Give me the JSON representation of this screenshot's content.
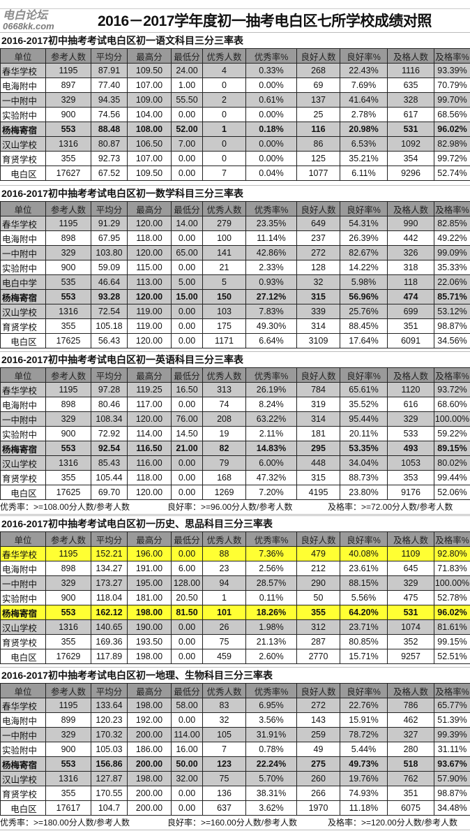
{
  "title": "2016－2017学年度初一抽考电白区七所学校成绩对照",
  "columns": [
    "单位",
    "参考人数",
    "平均分",
    "最高分",
    "最低分",
    "优秀人数",
    "优秀率%",
    "良好人数",
    "良好率%",
    "及格人数",
    "及格率%"
  ],
  "sections": [
    {
      "title": "2016-2017初中抽考考试电白区初一语文科目三分三率表",
      "rows": [
        {
          "style": "gray",
          "cells": [
            "春华学校",
            "1195",
            "87.91",
            "109.50",
            "24.00",
            "4",
            "0.33%",
            "268",
            "22.43%",
            "1116",
            "93.39%"
          ]
        },
        {
          "style": "white",
          "cells": [
            "电海附中",
            "897",
            "77.40",
            "107.00",
            "1.00",
            "0",
            "0.00%",
            "69",
            "7.69%",
            "635",
            "70.79%"
          ]
        },
        {
          "style": "gray",
          "cells": [
            "一中附中",
            "329",
            "94.35",
            "109.00",
            "55.50",
            "2",
            "0.61%",
            "137",
            "41.64%",
            "328",
            "99.70%"
          ]
        },
        {
          "style": "white",
          "cells": [
            "实验附中",
            "900",
            "74.56",
            "104.00",
            "0.00",
            "0",
            "0.00%",
            "25",
            "2.78%",
            "617",
            "68.56%"
          ]
        },
        {
          "style": "gray",
          "bold": true,
          "cells": [
            "杨梅寄宿",
            "553",
            "88.48",
            "108.00",
            "52.00",
            "1",
            "0.18%",
            "116",
            "20.98%",
            "531",
            "96.02%"
          ]
        },
        {
          "style": "gray",
          "cells": [
            "汉山学校",
            "1316",
            "80.87",
            "106.50",
            "7.00",
            "0",
            "0.00%",
            "86",
            "6.53%",
            "1092",
            "82.98%"
          ]
        },
        {
          "style": "white",
          "cells": [
            "育贤学校",
            "355",
            "92.73",
            "107.00",
            "0.00",
            "0",
            "0.00%",
            "125",
            "35.21%",
            "354",
            "99.72%"
          ]
        },
        {
          "style": "white",
          "last": true,
          "cells": [
            "电白区",
            "17627",
            "67.52",
            "109.50",
            "0.00",
            "7",
            "0.04%",
            "1077",
            "6.11%",
            "9296",
            "52.74%"
          ]
        }
      ]
    },
    {
      "title": "2016-2017初中抽考考试电白区初一数学科目三分三率表",
      "rows": [
        {
          "style": "gray",
          "cells": [
            "春华学校",
            "1195",
            "91.29",
            "120.00",
            "14.00",
            "279",
            "23.35%",
            "649",
            "54.31%",
            "990",
            "82.85%"
          ]
        },
        {
          "style": "white",
          "cells": [
            "电海附中",
            "898",
            "67.95",
            "118.00",
            "0.00",
            "100",
            "11.14%",
            "237",
            "26.39%",
            "442",
            "49.22%"
          ]
        },
        {
          "style": "gray",
          "cells": [
            "一中附中",
            "329",
            "103.80",
            "120.00",
            "65.00",
            "141",
            "42.86%",
            "272",
            "82.67%",
            "326",
            "99.09%"
          ]
        },
        {
          "style": "white",
          "cells": [
            "实验附中",
            "900",
            "59.09",
            "115.00",
            "0.00",
            "21",
            "2.33%",
            "128",
            "14.22%",
            "318",
            "35.33%"
          ]
        },
        {
          "style": "gray",
          "cells": [
            "电白中学",
            "535",
            "46.64",
            "113.00",
            "5.00",
            "5",
            "0.93%",
            "32",
            "5.98%",
            "118",
            "22.06%"
          ]
        },
        {
          "style": "gray",
          "bold": true,
          "cells": [
            "杨梅寄宿",
            "553",
            "93.28",
            "120.00",
            "15.00",
            "150",
            "27.12%",
            "315",
            "56.96%",
            "474",
            "85.71%"
          ]
        },
        {
          "style": "gray",
          "cells": [
            "汉山学校",
            "1316",
            "72.54",
            "119.00",
            "0.00",
            "103",
            "7.83%",
            "339",
            "25.76%",
            "699",
            "53.12%"
          ]
        },
        {
          "style": "white",
          "cells": [
            "育贤学校",
            "355",
            "105.18",
            "119.00",
            "0.00",
            "175",
            "49.30%",
            "314",
            "88.45%",
            "351",
            "98.87%"
          ]
        },
        {
          "style": "white",
          "last": true,
          "cells": [
            "电白区",
            "17625",
            "56.43",
            "120.00",
            "0.00",
            "1171",
            "6.64%",
            "3109",
            "17.64%",
            "6091",
            "34.56%"
          ]
        }
      ]
    },
    {
      "title": "2016-2017初中抽考考试电白区初一英语科目三分三率表",
      "rows": [
        {
          "style": "gray",
          "cells": [
            "春华学校",
            "1195",
            "97.28",
            "119.25",
            "16.50",
            "313",
            "26.19%",
            "784",
            "65.61%",
            "1120",
            "93.72%"
          ]
        },
        {
          "style": "white",
          "cells": [
            "电海附中",
            "898",
            "80.46",
            "117.00",
            "0.00",
            "74",
            "8.24%",
            "319",
            "35.52%",
            "616",
            "68.60%"
          ]
        },
        {
          "style": "gray",
          "cells": [
            "一中附中",
            "329",
            "108.34",
            "120.00",
            "76.00",
            "208",
            "63.22%",
            "314",
            "95.44%",
            "329",
            "100.00%"
          ]
        },
        {
          "style": "white",
          "cells": [
            "实验附中",
            "900",
            "72.92",
            "114.00",
            "14.50",
            "19",
            "2.11%",
            "181",
            "20.11%",
            "533",
            "59.22%"
          ]
        },
        {
          "style": "gray",
          "bold": true,
          "cells": [
            "杨梅寄宿",
            "553",
            "92.54",
            "116.50",
            "21.00",
            "82",
            "14.83%",
            "295",
            "53.35%",
            "493",
            "89.15%"
          ]
        },
        {
          "style": "gray",
          "cells": [
            "汉山学校",
            "1316",
            "85.43",
            "116.00",
            "0.00",
            "79",
            "6.00%",
            "448",
            "34.04%",
            "1053",
            "80.02%"
          ]
        },
        {
          "style": "white",
          "cells": [
            "育贤学校",
            "355",
            "105.44",
            "118.00",
            "0.00",
            "168",
            "47.32%",
            "315",
            "88.73%",
            "353",
            "99.44%"
          ]
        },
        {
          "style": "white",
          "last": true,
          "cells": [
            "电白区",
            "17625",
            "69.70",
            "120.00",
            "0.00",
            "1269",
            "7.20%",
            "4195",
            "23.80%",
            "9176",
            "52.06%"
          ]
        }
      ],
      "footer": [
        "优秀率：>=108.00分人数/参考人数",
        "良好率：>=96.00分人数/参考人数",
        "及格率：>=72.00分人数/参考人数"
      ]
    },
    {
      "title": "2016-2017初中抽考考试电白区初一历史、思品科目三分三率表",
      "rows": [
        {
          "style": "yellow",
          "cells": [
            "春华学校",
            "1195",
            "152.21",
            "196.00",
            "0.00",
            "88",
            "7.36%",
            "479",
            "40.08%",
            "1109",
            "92.80%"
          ]
        },
        {
          "style": "white",
          "cells": [
            "电海附中",
            "898",
            "134.27",
            "191.00",
            "6.00",
            "23",
            "2.56%",
            "212",
            "23.61%",
            "645",
            "71.83%"
          ]
        },
        {
          "style": "gray",
          "cells": [
            "一中附中",
            "329",
            "173.27",
            "195.00",
            "128.00",
            "94",
            "28.57%",
            "290",
            "88.15%",
            "329",
            "100.00%"
          ]
        },
        {
          "style": "white",
          "cells": [
            "实验附中",
            "900",
            "118.04",
            "181.00",
            "20.50",
            "1",
            "0.11%",
            "50",
            "5.56%",
            "475",
            "52.78%"
          ]
        },
        {
          "style": "yellow",
          "bold": true,
          "cells": [
            "杨梅寄宿",
            "553",
            "162.12",
            "198.00",
            "81.50",
            "101",
            "18.26%",
            "355",
            "64.20%",
            "531",
            "96.02%"
          ]
        },
        {
          "style": "gray",
          "cells": [
            "汉山学校",
            "1316",
            "140.65",
            "190.00",
            "0.00",
            "26",
            "1.98%",
            "312",
            "23.71%",
            "1074",
            "81.61%"
          ]
        },
        {
          "style": "white",
          "cells": [
            "育贤学校",
            "355",
            "169.36",
            "193.50",
            "0.00",
            "75",
            "21.13%",
            "287",
            "80.85%",
            "352",
            "99.15%"
          ]
        },
        {
          "style": "white",
          "last": true,
          "cells": [
            "电白区",
            "17629",
            "117.89",
            "198.00",
            "0.00",
            "459",
            "2.60%",
            "2770",
            "15.71%",
            "9257",
            "52.51%"
          ]
        }
      ]
    },
    {
      "title": "2016-2017初中抽考考试电白区初一地理、生物科目三分三率表",
      "rows": [
        {
          "style": "gray",
          "cells": [
            "春华学校",
            "1195",
            "133.64",
            "198.00",
            "58.00",
            "83",
            "6.95%",
            "272",
            "22.76%",
            "786",
            "65.77%"
          ]
        },
        {
          "style": "white",
          "cells": [
            "电海附中",
            "899",
            "120.23",
            "192.00",
            "0.00",
            "32",
            "3.56%",
            "143",
            "15.91%",
            "462",
            "51.39%"
          ]
        },
        {
          "style": "gray",
          "cells": [
            "一中附中",
            "329",
            "170.32",
            "200.00",
            "114.00",
            "105",
            "31.91%",
            "259",
            "78.72%",
            "327",
            "99.39%"
          ]
        },
        {
          "style": "white",
          "cells": [
            "实验附中",
            "900",
            "105.03",
            "186.00",
            "16.00",
            "7",
            "0.78%",
            "49",
            "5.44%",
            "280",
            "31.11%"
          ]
        },
        {
          "style": "gray",
          "bold": true,
          "cells": [
            "杨梅寄宿",
            "553",
            "156.86",
            "200.00",
            "50.00",
            "123",
            "22.24%",
            "275",
            "49.73%",
            "518",
            "93.67%"
          ]
        },
        {
          "style": "gray",
          "cells": [
            "汉山学校",
            "1316",
            "127.87",
            "198.00",
            "32.00",
            "75",
            "5.70%",
            "260",
            "19.76%",
            "762",
            "57.90%"
          ]
        },
        {
          "style": "white",
          "cells": [
            "育贤学校",
            "355",
            "170.55",
            "200.00",
            "0.00",
            "136",
            "38.31%",
            "266",
            "74.93%",
            "351",
            "98.87%"
          ]
        },
        {
          "style": "white",
          "last": true,
          "cells": [
            "电白区",
            "17617",
            "104.7",
            "200.00",
            "0.00",
            "637",
            "3.62%",
            "1970",
            "11.18%",
            "6075",
            "34.48%"
          ]
        }
      ],
      "footer": [
        "优秀率：>=180.00分人数/参考人数",
        "良好率：>=160.00分人数/参考人数",
        "及格率：>=120.00分人数/参考人数"
      ]
    }
  ],
  "watermark": {
    "text": "电白论坛",
    "url": "0668kk.com"
  }
}
